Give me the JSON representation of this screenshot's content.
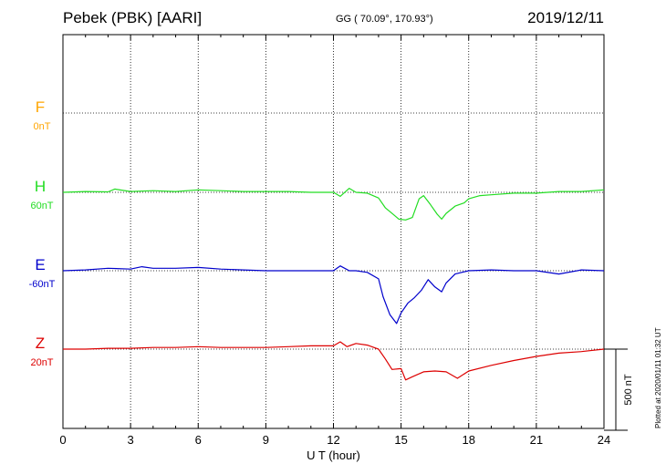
{
  "header": {
    "station": "Pebek (PBK)  [AARI]",
    "coords": "GG ( 70.09°, 170.93°)",
    "date": "2019/12/11"
  },
  "footer": {
    "plotted": "Plotted at 2020/01/11 01:32 UT"
  },
  "colors": {
    "F": "#ffa500",
    "H": "#22dd22",
    "E": "#0000cc",
    "Z": "#dd0000"
  },
  "chart_data": {
    "type": "line",
    "title": "Pebek (PBK)  [AARI]",
    "xlabel": "U T (hour)",
    "ylabel": "",
    "xlim": [
      0,
      24
    ],
    "xticks": [
      "0",
      "3",
      "6",
      "9",
      "12",
      "15",
      "18",
      "21",
      "24"
    ],
    "scale_bar": "500 nT",
    "grid": true,
    "series": [
      {
        "name": "F",
        "baseline_label": "0nT",
        "x": [],
        "y": []
      },
      {
        "name": "H",
        "baseline_label": "60nT",
        "x": [
          0,
          1,
          2,
          2.3,
          3,
          4,
          5,
          6,
          7,
          8,
          9,
          10,
          11,
          12,
          12.3,
          12.7,
          13,
          13.5,
          14,
          14.3,
          14.6,
          14.9,
          15.2,
          15.5,
          15.8,
          16,
          16.3,
          16.6,
          16.8,
          17,
          17.4,
          17.8,
          18,
          18.5,
          19,
          20,
          21,
          22,
          23,
          24
        ],
        "y": [
          0,
          5,
          3,
          20,
          5,
          10,
          5,
          15,
          10,
          5,
          5,
          5,
          0,
          0,
          -25,
          25,
          0,
          -5,
          -35,
          -95,
          -130,
          -165,
          -170,
          -155,
          -40,
          -20,
          -75,
          -135,
          -165,
          -130,
          -85,
          -65,
          -40,
          -20,
          -15,
          -5,
          -5,
          5,
          5,
          15
        ]
      },
      {
        "name": "E",
        "baseline_label": "-60nT",
        "x": [
          0,
          1,
          2,
          3,
          3.5,
          4,
          5,
          6,
          7,
          8,
          9,
          10,
          11,
          12,
          12.3,
          12.7,
          13,
          13.5,
          14,
          14.2,
          14.5,
          14.8,
          15,
          15.3,
          15.6,
          15.9,
          16.2,
          16.5,
          16.8,
          17,
          17.4,
          18,
          19,
          20,
          21,
          22,
          23,
          24
        ],
        "y": [
          0,
          5,
          15,
          10,
          25,
          15,
          15,
          20,
          10,
          5,
          0,
          0,
          0,
          0,
          30,
          0,
          0,
          -10,
          -50,
          -160,
          -270,
          -325,
          -260,
          -200,
          -165,
          -120,
          -55,
          -100,
          -130,
          -75,
          -20,
          0,
          5,
          0,
          0,
          -20,
          5,
          0
        ]
      },
      {
        "name": "Z",
        "baseline_label": "20nT",
        "x": [
          0,
          1,
          2,
          3,
          4,
          5,
          6,
          7,
          8,
          9,
          10,
          11,
          12,
          12.3,
          12.6,
          13,
          13.5,
          14,
          14.3,
          14.6,
          15,
          15.2,
          15.5,
          16,
          16.5,
          17,
          17.5,
          18,
          19,
          20,
          21,
          22,
          23,
          24
        ],
        "y": [
          0,
          0,
          5,
          5,
          10,
          10,
          15,
          10,
          10,
          10,
          15,
          20,
          20,
          45,
          15,
          35,
          25,
          0,
          -60,
          -125,
          -120,
          -190,
          -170,
          -140,
          -135,
          -140,
          -180,
          -135,
          -100,
          -70,
          -45,
          -25,
          -15,
          0
        ]
      }
    ]
  }
}
